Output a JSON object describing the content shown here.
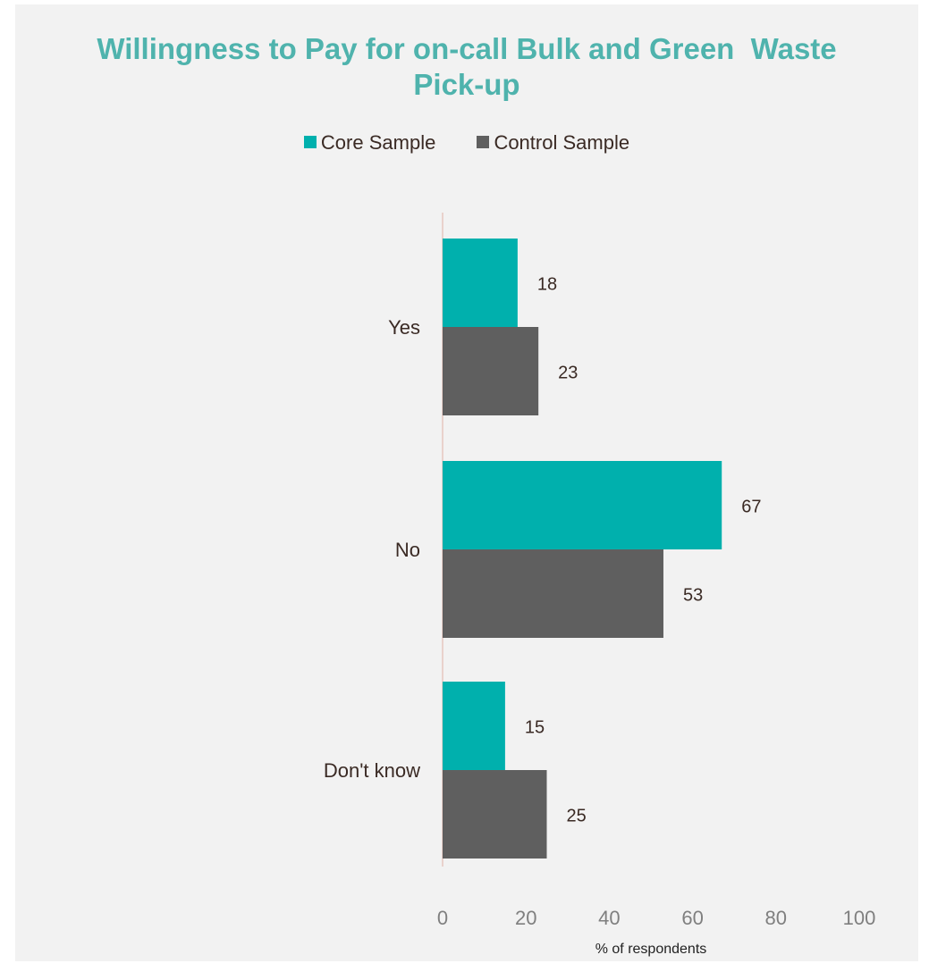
{
  "colors": {
    "core": "#00b0ad",
    "control": "#5f5f5f",
    "title": "#4fb3ad",
    "axis_text": "#7f7f7f",
    "label_text": "#3a2a24",
    "background": "#f2f2f2"
  },
  "chart_data": {
    "type": "bar",
    "orientation": "horizontal",
    "title": "Willingness to Pay for on-call Bulk and Green  Waste\nPick-up",
    "categories": [
      "Yes",
      "No",
      "Don't know"
    ],
    "series": [
      {
        "name": "Core Sample",
        "values": [
          18,
          67,
          15
        ]
      },
      {
        "name": "Control Sample",
        "values": [
          23,
          53,
          25
        ]
      }
    ],
    "xlabel": "% of respondents",
    "ylabel": "",
    "xlim": [
      0,
      100
    ],
    "xticks": [
      "0",
      "20",
      "40",
      "60",
      "80",
      "100"
    ],
    "legend": "top",
    "grid": false,
    "data_labels": true
  }
}
